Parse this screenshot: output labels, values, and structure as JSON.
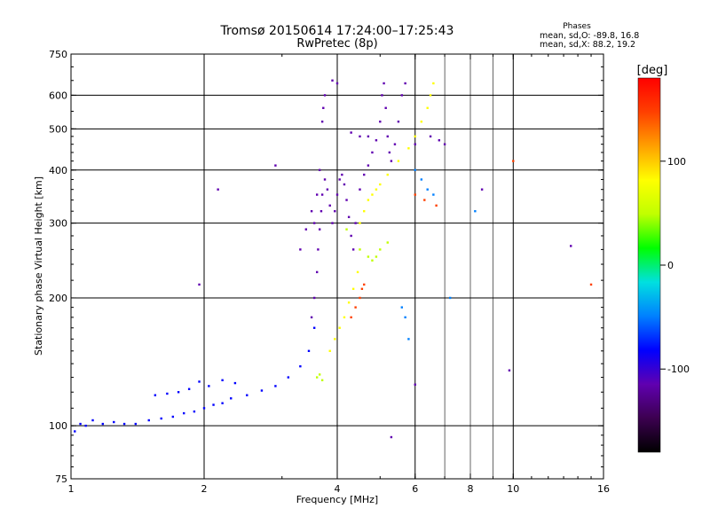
{
  "chart_data": {
    "type": "scatter",
    "title": "Tromsø 20150614 17:24:00–17:25:43",
    "subtitle": "RwPretec (8p)",
    "xlabel": "Frequency [MHz]",
    "ylabel": "Stationary phase Virtual Height [km]",
    "x_scale": "log",
    "y_scale": "log",
    "xlim": [
      1,
      16
    ],
    "ylim": [
      75,
      750
    ],
    "x_ticks": [
      1,
      2,
      4,
      6,
      8,
      10,
      16
    ],
    "x_tick_labels": [
      "1",
      "2",
      "4",
      "6",
      "8",
      "10",
      "16"
    ],
    "x_grid_major": [
      2,
      4,
      6,
      10
    ],
    "x_grid_minor": [
      7,
      8,
      9
    ],
    "y_ticks": [
      75,
      100,
      200,
      300,
      400,
      500,
      600,
      750
    ],
    "y_tick_labels": [
      "75",
      "100",
      "200",
      "300",
      "400",
      "500",
      "600",
      "750"
    ],
    "grid": true,
    "legend_text": {
      "title": "Phases",
      "o_line": "mean, sd,O: -89.8, 16.8",
      "x_line": "mean, sd,X:  88.2, 19.2"
    },
    "colorbar": {
      "label": "[deg]",
      "range": [
        -180,
        180
      ],
      "ticks": [
        100,
        0,
        -100
      ],
      "tick_labels": [
        "100",
        "0",
        "-100"
      ],
      "colors": [
        "#000000",
        "#3c0050",
        "#6000b0",
        "#0000ff",
        "#0080ff",
        "#00e0e0",
        "#00ff00",
        "#c0ff00",
        "#ffff00",
        "#ffa000",
        "#ff4000",
        "#ff0000"
      ]
    },
    "series": [
      {
        "phase": -95,
        "points": [
          [
            1.02,
            97
          ],
          [
            1.05,
            101
          ],
          [
            1.08,
            100
          ],
          [
            1.12,
            103
          ],
          [
            1.18,
            101
          ],
          [
            1.25,
            102
          ],
          [
            1.32,
            101
          ],
          [
            1.4,
            101
          ],
          [
            1.5,
            103
          ],
          [
            1.6,
            104
          ],
          [
            1.7,
            105
          ],
          [
            1.8,
            107
          ],
          [
            1.9,
            108
          ],
          [
            2.0,
            110
          ],
          [
            2.1,
            112
          ],
          [
            2.2,
            113
          ],
          [
            2.3,
            116
          ],
          [
            2.5,
            118
          ],
          [
            2.7,
            121
          ],
          [
            2.9,
            124
          ],
          [
            3.1,
            130
          ],
          [
            3.3,
            138
          ],
          [
            3.45,
            150
          ],
          [
            3.55,
            170
          ]
        ]
      },
      {
        "phase": -80,
        "points": [
          [
            1.55,
            118
          ],
          [
            1.65,
            119
          ],
          [
            1.75,
            120
          ],
          [
            1.85,
            122
          ],
          [
            1.95,
            127
          ],
          [
            2.05,
            124
          ],
          [
            2.2,
            128
          ],
          [
            2.35,
            126
          ]
        ]
      },
      {
        "phase": -100,
        "points": [
          [
            3.5,
            180
          ],
          [
            3.55,
            200
          ],
          [
            3.6,
            230
          ],
          [
            3.62,
            260
          ],
          [
            3.65,
            290
          ],
          [
            3.68,
            320
          ],
          [
            3.7,
            350
          ],
          [
            3.75,
            380
          ],
          [
            3.8,
            360
          ],
          [
            3.85,
            330
          ],
          [
            3.9,
            300
          ],
          [
            3.95,
            320
          ],
          [
            4.0,
            350
          ],
          [
            4.05,
            380
          ],
          [
            4.1,
            390
          ],
          [
            4.15,
            370
          ],
          [
            4.2,
            340
          ],
          [
            4.25,
            310
          ],
          [
            4.3,
            280
          ],
          [
            4.35,
            260
          ],
          [
            4.4,
            300
          ],
          [
            4.5,
            360
          ],
          [
            4.6,
            390
          ],
          [
            4.7,
            410
          ],
          [
            4.8,
            440
          ],
          [
            4.9,
            470
          ],
          [
            5.0,
            520
          ],
          [
            5.05,
            600
          ],
          [
            5.1,
            640
          ],
          [
            5.15,
            560
          ],
          [
            5.2,
            480
          ],
          [
            5.25,
            440
          ],
          [
            5.3,
            420
          ],
          [
            5.4,
            460
          ],
          [
            5.5,
            520
          ],
          [
            5.6,
            600
          ],
          [
            5.7,
            640
          ]
        ]
      },
      {
        "phase": -110,
        "points": [
          [
            3.3,
            260
          ],
          [
            3.4,
            290
          ],
          [
            3.5,
            320
          ],
          [
            3.55,
            300
          ],
          [
            3.6,
            350
          ],
          [
            3.65,
            400
          ],
          [
            3.7,
            520
          ],
          [
            3.72,
            560
          ],
          [
            3.75,
            600
          ],
          [
            3.9,
            650
          ],
          [
            4.0,
            640
          ],
          [
            4.3,
            490
          ],
          [
            4.5,
            480
          ],
          [
            4.7,
            480
          ],
          [
            6.0,
            460
          ],
          [
            6.5,
            480
          ],
          [
            6.8,
            470
          ],
          [
            7.0,
            460
          ]
        ]
      },
      {
        "phase": 60,
        "points": [
          [
            3.6,
            130
          ],
          [
            3.65,
            132
          ],
          [
            3.7,
            128
          ],
          [
            4.2,
            290
          ],
          [
            4.5,
            260
          ],
          [
            4.7,
            250
          ],
          [
            4.8,
            245
          ],
          [
            4.9,
            250
          ],
          [
            5.0,
            260
          ],
          [
            5.2,
            270
          ]
        ]
      },
      {
        "phase": 95,
        "points": [
          [
            3.85,
            150
          ],
          [
            3.95,
            160
          ],
          [
            4.05,
            170
          ],
          [
            4.15,
            180
          ],
          [
            4.25,
            195
          ],
          [
            4.35,
            210
          ],
          [
            4.45,
            230
          ],
          [
            4.5,
            300
          ],
          [
            4.6,
            320
          ],
          [
            4.7,
            340
          ],
          [
            4.8,
            350
          ],
          [
            4.9,
            360
          ],
          [
            5.0,
            370
          ],
          [
            5.2,
            390
          ],
          [
            5.5,
            420
          ],
          [
            5.8,
            450
          ],
          [
            6.0,
            480
          ],
          [
            6.2,
            520
          ],
          [
            6.4,
            560
          ],
          [
            6.5,
            600
          ],
          [
            6.6,
            640
          ]
        ]
      },
      {
        "phase": 140,
        "points": [
          [
            4.3,
            180
          ],
          [
            4.4,
            190
          ],
          [
            4.5,
            200
          ],
          [
            4.55,
            210
          ],
          [
            4.6,
            215
          ],
          [
            6.0,
            350
          ],
          [
            6.3,
            340
          ],
          [
            6.7,
            330
          ],
          [
            15.0,
            215
          ],
          [
            10.0,
            420
          ]
        ]
      },
      {
        "phase": -60,
        "points": [
          [
            6.0,
            400
          ],
          [
            6.2,
            380
          ],
          [
            6.4,
            360
          ],
          [
            6.6,
            350
          ],
          [
            5.6,
            190
          ],
          [
            5.7,
            180
          ],
          [
            5.8,
            160
          ],
          [
            7.2,
            200
          ],
          [
            8.2,
            320
          ]
        ]
      },
      {
        "phase": -130,
        "points": [
          [
            1.95,
            215
          ],
          [
            2.15,
            360
          ],
          [
            2.9,
            410
          ],
          [
            5.3,
            94
          ],
          [
            6.0,
            125
          ],
          [
            8.5,
            360
          ],
          [
            13.5,
            265
          ],
          [
            9.8,
            135
          ]
        ]
      }
    ]
  }
}
